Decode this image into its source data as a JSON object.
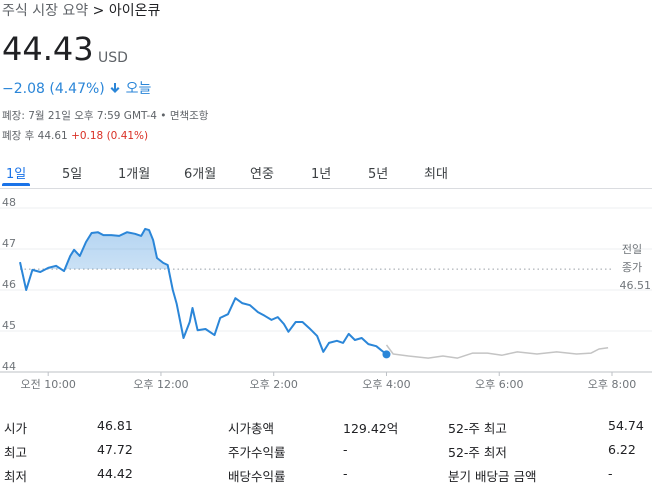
{
  "breadcrumb": {
    "path": "주식 시장 요약",
    "separator": ">",
    "current": "아이온큐"
  },
  "quote": {
    "price": "44.43",
    "currency": "USD",
    "change": "−2.08 (4.47%)",
    "period": "오늘",
    "close_note": "폐장: 7월 21일 오후 7:59 GMT-4",
    "bullet": "•",
    "disclaimer": "면책조항",
    "after_hours_label": "폐장 후 44.61",
    "after_hours_change": "+0.18 (0.41%)"
  },
  "tabs": {
    "items": [
      "1일",
      "5일",
      "1개월",
      "6개월",
      "연중",
      "1년",
      "5년",
      "최대"
    ],
    "selected": 0
  },
  "chart_data": {
    "type": "line",
    "xlim": [
      9.5,
      20
    ],
    "ylim": [
      44,
      48
    ],
    "xticks": [
      {
        "value": 10,
        "label": "오전 10:00"
      },
      {
        "value": 12,
        "label": "오후 12:00"
      },
      {
        "value": 14,
        "label": "오후 2:00"
      },
      {
        "value": 16,
        "label": "오후 4:00"
      },
      {
        "value": 18,
        "label": "오후 6:00"
      },
      {
        "value": 20,
        "label": "오후 8:00"
      }
    ],
    "yticks": [
      44,
      45,
      46,
      47,
      48
    ],
    "grid": true,
    "series": [
      {
        "color": "#2b86d8",
        "x": [
          9.5,
          9.61,
          9.72,
          9.86,
          10.0,
          10.14,
          10.28,
          10.39,
          10.46,
          10.56,
          10.67,
          10.77,
          10.88,
          10.98,
          11.12,
          11.26,
          11.4,
          11.54,
          11.65,
          11.72,
          11.79,
          11.86,
          11.93,
          12.04,
          12.12,
          12.21,
          12.28,
          12.4,
          12.51,
          12.56,
          12.65,
          12.79,
          12.95,
          13.05,
          13.19,
          13.32,
          13.44,
          13.58,
          13.72,
          13.84,
          13.96,
          14.07,
          14.18,
          14.26,
          14.39,
          14.51,
          14.63,
          14.77,
          14.88,
          14.98,
          15.12,
          15.23,
          15.33,
          15.44,
          15.56,
          15.68,
          15.82,
          16.0
        ],
        "values": [
          46.68,
          46.0,
          46.49,
          46.44,
          46.54,
          46.59,
          46.46,
          46.83,
          46.98,
          46.83,
          47.17,
          47.39,
          47.41,
          47.34,
          47.34,
          47.32,
          47.41,
          47.37,
          47.32,
          47.49,
          47.46,
          47.22,
          46.78,
          46.66,
          46.61,
          46.0,
          45.66,
          44.83,
          45.22,
          45.56,
          45.02,
          45.05,
          44.9,
          45.32,
          45.41,
          45.8,
          45.68,
          45.63,
          45.46,
          45.37,
          45.27,
          45.34,
          45.17,
          44.98,
          45.22,
          45.22,
          45.07,
          44.88,
          44.49,
          44.71,
          44.76,
          44.71,
          44.93,
          44.78,
          44.83,
          44.68,
          44.63,
          44.43
        ]
      },
      {
        "color": "#c4c4c4",
        "x": [
          16.0,
          16.12,
          16.39,
          16.74,
          17.0,
          17.26,
          17.53,
          17.79,
          18.05,
          18.32,
          18.67,
          19.02,
          19.37,
          19.63,
          19.77,
          19.93
        ],
        "values": [
          44.66,
          44.44,
          44.39,
          44.34,
          44.39,
          44.34,
          44.46,
          44.46,
          44.41,
          44.49,
          44.44,
          44.49,
          44.44,
          44.46,
          44.56,
          44.59
        ]
      }
    ],
    "prev_close": {
      "label": [
        "전일",
        "종가"
      ],
      "value": 46.51
    }
  },
  "stats": {
    "rows": [
      [
        [
          "시가",
          "46.81"
        ],
        [
          "시가총액",
          "129.42억"
        ],
        [
          "52-주 최고",
          "54.74"
        ]
      ],
      [
        [
          "최고",
          "47.72"
        ],
        [
          "주가수익률",
          "-"
        ],
        [
          "52-주 최저",
          "6.22"
        ]
      ],
      [
        [
          "최저",
          "44.42"
        ],
        [
          "배당수익률",
          "-"
        ],
        [
          "분기 배당금 금액",
          "-"
        ]
      ]
    ]
  }
}
